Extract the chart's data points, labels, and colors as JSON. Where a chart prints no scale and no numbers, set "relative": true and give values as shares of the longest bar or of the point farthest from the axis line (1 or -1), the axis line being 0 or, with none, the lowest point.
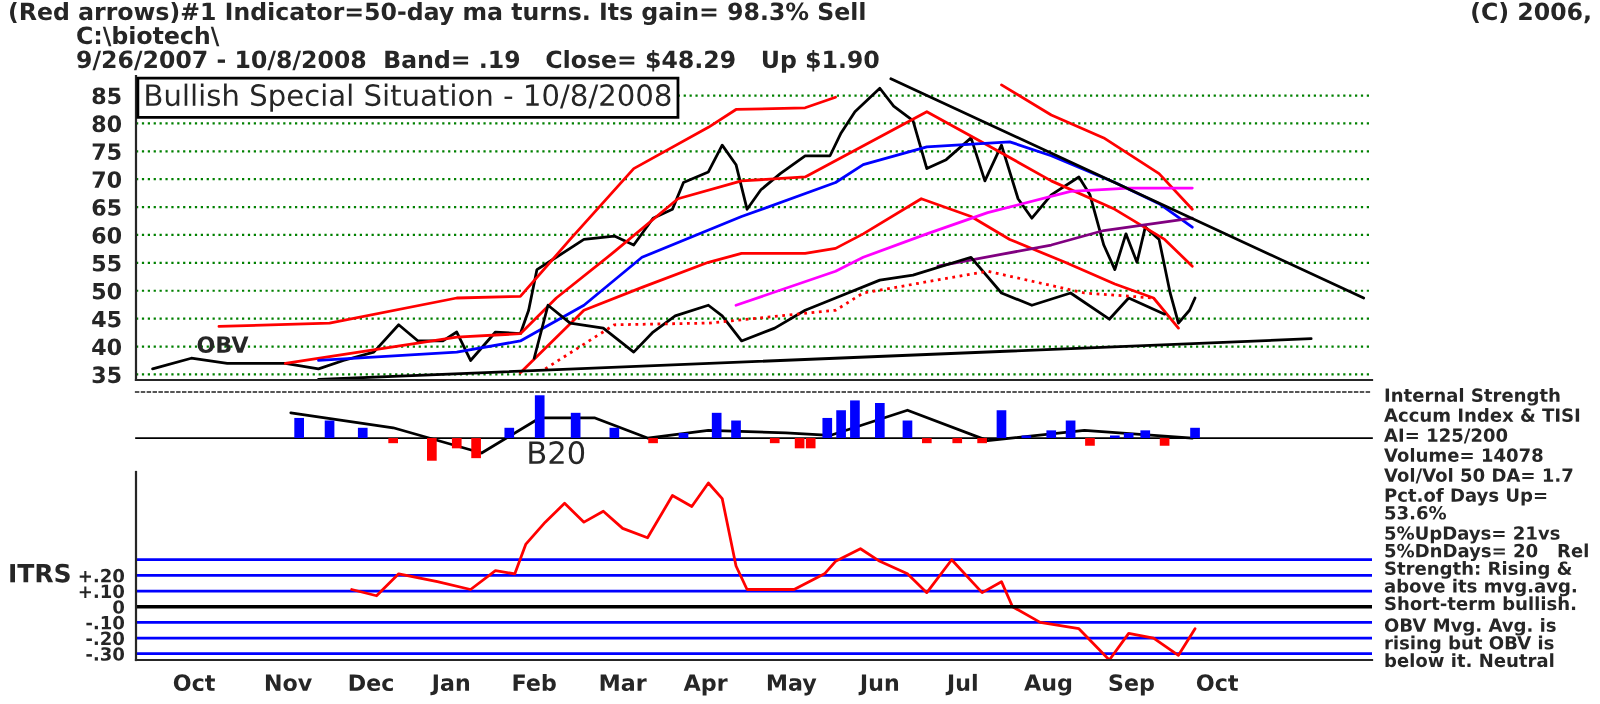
{
  "chart_data": [
    {
      "type": "line",
      "title": "Bullish Special Situation - 10/8/2008",
      "tick_labels": "y",
      "grid": "y",
      "legend": false,
      "xlim": [
        "2007-09-20",
        "2008-12-10"
      ],
      "ylim": [
        34,
        88.5
      ],
      "yticks": [
        35,
        40,
        45,
        50,
        55,
        60,
        65,
        70,
        75,
        80,
        85
      ],
      "xticks": [
        {
          "value": "2007-10-11",
          "label": null
        },
        {
          "value": "2007-11-14",
          "label": null
        },
        {
          "value": "2007-12-14",
          "label": null
        },
        {
          "value": "2008-01-12",
          "label": null
        },
        {
          "value": "2008-02-11",
          "label": null
        },
        {
          "value": "2008-03-14",
          "label": null
        },
        {
          "value": "2008-04-13",
          "label": null
        },
        {
          "value": "2008-05-14",
          "label": null
        },
        {
          "value": "2008-06-15",
          "label": null
        },
        {
          "value": "2008-07-15",
          "label": null
        },
        {
          "value": "2008-08-15",
          "label": null
        },
        {
          "value": "2008-09-14",
          "label": null
        },
        {
          "value": "2008-10-15",
          "label": null
        }
      ],
      "annotations": [
        "(Red arrows)#1 Indicator=50-day ma turns. Its gain= 98.3% Sell",
        "(C) 2006,",
        "C:\\biotech\\",
        "9/26/2007 - 10/8/2008  Band= .19   Close= $48.29   Up $1.90",
        "OBV"
      ],
      "series": [
        {
          "color": "#000000",
          "x": [
            "2007-09-26",
            "2007-10-10",
            "2007-10-23",
            "2007-11-13",
            "2007-11-25",
            "2007-12-04",
            "2007-12-15",
            "2007-12-24",
            "2007-12-31",
            "2008-01-09",
            "2008-01-14",
            "2008-01-19",
            "2008-01-28",
            "2008-02-06",
            "2008-02-09",
            "2008-02-12",
            "2008-02-19",
            "2008-02-29",
            "2008-03-11",
            "2008-03-18",
            "2008-03-25",
            "2008-04-01",
            "2008-04-05",
            "2008-04-14",
            "2008-04-19",
            "2008-04-24",
            "2008-04-28",
            "2008-05-03",
            "2008-05-10",
            "2008-05-19",
            "2008-05-28",
            "2008-06-01",
            "2008-06-06",
            "2008-06-15",
            "2008-06-20",
            "2008-06-27",
            "2008-07-02",
            "2008-07-09",
            "2008-07-18",
            "2008-07-23",
            "2008-07-29",
            "2008-08-04",
            "2008-08-09",
            "2008-08-16",
            "2008-08-26",
            "2008-08-30",
            "2008-09-04",
            "2008-09-08",
            "2008-09-12",
            "2008-09-16",
            "2008-09-19",
            "2008-09-24",
            "2008-09-28",
            "2008-10-01",
            "2008-10-05",
            "2008-10-07"
          ],
          "values": [
            36,
            37.9,
            37,
            37,
            36,
            37.5,
            39,
            43.9,
            41,
            41,
            42.6,
            37.5,
            42.6,
            42.3,
            46.5,
            53.8,
            56,
            59.2,
            59.8,
            58.2,
            63,
            64.6,
            69.4,
            71.3,
            76.1,
            72.6,
            64.6,
            68.1,
            71,
            74.2,
            74.2,
            78.3,
            82.1,
            86.3,
            83.1,
            80.5,
            71.9,
            73.5,
            77.4,
            69.7,
            76.1,
            66.5,
            63,
            67.2,
            70.4,
            67.2,
            58.2,
            53.8,
            60.2,
            55.1,
            61.4,
            59.2,
            49.6,
            44.2,
            46.5,
            48.7
          ]
        },
        {
          "color": "#ff0000",
          "x": [
            "2007-10-20",
            "2007-11-29",
            "2008-01-14",
            "2008-02-06",
            "2008-02-24",
            "2008-03-18",
            "2008-04-14",
            "2008-04-24",
            "2008-05-19",
            "2008-05-30",
            "2008-06-13",
            "2008-07-18",
            "2008-07-29",
            "2008-08-16",
            "2008-09-04",
            "2008-09-24",
            "2008-10-06"
          ],
          "values": [
            43.6,
            44.2,
            48.7,
            49,
            59.2,
            71.9,
            79.3,
            82.5,
            82.8,
            84.7,
            null,
            null,
            86.9,
            81.5,
            77.4,
            71,
            64.6
          ]
        },
        {
          "color": "#ff0000",
          "x": [
            "2007-11-13",
            "2008-01-14",
            "2008-02-06",
            "2008-02-19",
            "2008-03-11",
            "2008-04-03",
            "2008-04-26",
            "2008-05-19",
            "2008-07-02",
            "2008-07-24",
            "2008-08-16",
            "2008-09-08",
            "2008-09-26",
            "2008-10-06"
          ],
          "values": [
            37,
            41.7,
            42.3,
            48.7,
            57,
            66.5,
            69.7,
            70.4,
            82.1,
            76.1,
            69.7,
            64.6,
            59.2,
            54.4
          ]
        },
        {
          "color": "#ff0000",
          "x": [
            "2008-02-06",
            "2008-02-29",
            "2008-03-21",
            "2008-04-14",
            "2008-04-26",
            "2008-05-19",
            "2008-05-30",
            "2008-06-09",
            "2008-06-30",
            "2008-07-18",
            "2008-08-01",
            "2008-08-21",
            "2008-09-08",
            "2008-09-22",
            "2008-10-01"
          ],
          "values": [
            35.3,
            46.5,
            50.6,
            55.1,
            56.7,
            56.7,
            57.6,
            60.2,
            66.5,
            63.3,
            59.2,
            55.1,
            51.2,
            48.7,
            43.3
          ]
        },
        {
          "color": "#0000ff",
          "x": [
            "2007-11-25",
            "2008-01-14",
            "2008-02-06",
            "2008-02-29",
            "2008-03-21",
            "2008-04-26",
            "2008-05-30",
            "2008-06-09",
            "2008-07-02",
            "2008-08-01",
            "2008-08-16",
            "2008-09-08",
            "2008-09-24",
            "2008-10-06"
          ],
          "values": [
            37.5,
            39,
            41,
            47.4,
            56,
            63.3,
            69.4,
            72.6,
            75.8,
            76.7,
            74.2,
            69.4,
            65.6,
            61.4
          ]
        },
        {
          "color": "#ff00ff",
          "x": [
            "2008-04-24",
            "2008-05-30",
            "2008-06-09",
            "2008-07-02",
            "2008-07-24",
            "2008-08-23",
            "2008-09-13",
            "2008-10-06"
          ],
          "values": [
            47.4,
            53.5,
            56,
            60.2,
            64,
            67.8,
            68.4,
            68.4
          ]
        },
        {
          "color": "#800080",
          "x": [
            "2008-07-06",
            "2008-08-16",
            "2008-09-04",
            "2008-10-06"
          ],
          "values": [
            54.4,
            58.2,
            60.8,
            63
          ]
        },
        {
          "color": "#000000",
          "x": [
            "2008-02-11",
            "2008-02-16",
            "2008-02-24",
            "2008-03-07",
            "2008-03-18",
            "2008-03-25",
            "2008-04-02",
            "2008-04-14",
            "2008-04-19",
            "2008-04-26",
            "2008-05-08",
            "2008-05-19",
            "2008-05-30",
            "2008-06-15",
            "2008-06-27",
            "2008-07-18",
            "2008-07-29",
            "2008-08-09",
            "2008-08-23",
            "2008-09-06",
            "2008-09-13",
            "2008-09-26"
          ],
          "values": [
            37.9,
            47.4,
            44.2,
            43.3,
            39,
            42.6,
            45.5,
            47.4,
            45.5,
            41,
            43.3,
            46.5,
            48.7,
            51.9,
            52.8,
            56,
            49.6,
            47.4,
            49.6,
            44.9,
            48.7,
            45.8
          ]
        },
        {
          "color": "#ff0000",
          "line_style": "dotted",
          "x": [
            "2008-02-15",
            "2008-03-11",
            "2008-04-14",
            "2008-05-30",
            "2008-06-09",
            "2008-07-24",
            "2008-08-28",
            "2008-09-22"
          ],
          "values": [
            36,
            43.9,
            44.2,
            46.5,
            49.6,
            53.5,
            49.6,
            48.7
          ]
        },
        {
          "color": "#000000",
          "x": [
            "2008-06-19",
            "2008-12-07"
          ],
          "values": [
            88,
            48.7
          ]
        },
        {
          "color": "#000000",
          "x": [
            "2007-11-25",
            "2008-11-18"
          ],
          "values": [
            34.1,
            41.4
          ]
        }
      ]
    },
    {
      "type": "bar",
      "relative": true,
      "tick_labels": false,
      "xlim": [
        "2007-09-20",
        "2008-12-10"
      ],
      "annotations": [
        "B20",
        "Internal Strength",
        "Accum Index & TISI",
        "AI= 125/200",
        "Volume= 14078",
        "Vol/Vol 50 DA= 1.7",
        "Pct.of Days Up= 53.6%",
        "5%UpDays= 21vs 5%DnDays= 20   Rel Strength: Rising & above its mvg.avg. Short-term bullish.",
        "OBV Mvg. Avg. is rising but OBV is below it. Neutral"
      ],
      "series": [
        {
          "type": "bar",
          "x": [
            "2007-11-18",
            "2007-11-29",
            "2007-12-11",
            "2007-12-22",
            "2008-01-05",
            "2008-01-14",
            "2008-01-21",
            "2008-02-02",
            "2008-02-13",
            "2008-02-26",
            "2008-03-11",
            "2008-03-25",
            "2008-04-05",
            "2008-04-17",
            "2008-04-24",
            "2008-05-08",
            "2008-05-17",
            "2008-05-21",
            "2008-05-27",
            "2008-06-01",
            "2008-06-06",
            "2008-06-15",
            "2008-06-25",
            "2008-07-02",
            "2008-07-13",
            "2008-07-22",
            "2008-07-29",
            "2008-08-07",
            "2008-08-16",
            "2008-08-23",
            "2008-08-30",
            "2008-09-08",
            "2008-09-13",
            "2008-09-19",
            "2008-09-26",
            "2008-10-07"
          ],
          "values": [
            0.47,
            0.41,
            0.24,
            -0.12,
            -0.53,
            -0.24,
            -0.47,
            0.24,
            1,
            0.59,
            0.24,
            -0.12,
            0.12,
            0.59,
            0.41,
            -0.12,
            -0.24,
            -0.24,
            0.47,
            0.65,
            0.88,
            0.82,
            0.41,
            -0.12,
            -0.12,
            -0.12,
            0.65,
            0.06,
            0.18,
            0.41,
            -0.18,
            0.06,
            0.12,
            0.18,
            -0.18,
            0.24
          ],
          "colors": [
            "#0000ff",
            "#0000ff",
            "#0000ff",
            "#ff0000",
            "#ff0000",
            "#ff0000",
            "#ff0000",
            "#0000ff",
            "#0000ff",
            "#0000ff",
            "#0000ff",
            "#ff0000",
            "#0000ff",
            "#0000ff",
            "#0000ff",
            "#ff0000",
            "#ff0000",
            "#ff0000",
            "#0000ff",
            "#0000ff",
            "#0000ff",
            "#0000ff",
            "#0000ff",
            "#ff0000",
            "#ff0000",
            "#ff0000",
            "#0000ff",
            "#0000ff",
            "#0000ff",
            "#0000ff",
            "#ff0000",
            "#0000ff",
            "#0000ff",
            "#0000ff",
            "#ff0000",
            "#0000ff"
          ]
        },
        {
          "type": "line",
          "color": "#000000",
          "x": [
            "2007-11-15",
            "2007-12-22",
            "2008-01-23",
            "2008-02-13",
            "2008-03-04",
            "2008-03-23",
            "2008-04-14",
            "2008-05-12",
            "2008-05-28",
            "2008-06-25",
            "2008-07-24",
            "2008-08-28",
            "2008-10-06"
          ],
          "values": [
            0.59,
            0.24,
            -0.35,
            0.47,
            0.47,
            0,
            0.18,
            0.12,
            0.06,
            0.65,
            -0.06,
            0.18,
            0
          ]
        }
      ]
    },
    {
      "type": "line",
      "ylabel": "ITRS",
      "grid": "y",
      "xlim": [
        "2007-09-20",
        "2008-12-10"
      ],
      "ylim": [
        -0.34,
        0.86
      ],
      "yticks": [
        {
          "value": 0.3,
          "label": null
        },
        {
          "value": 0.2,
          "label": "+.20"
        },
        {
          "value": 0.1,
          "label": "+.10"
        },
        0,
        {
          "value": -0.1,
          "label": "-.10"
        },
        {
          "value": -0.2,
          "label": "-.20"
        },
        {
          "value": -0.3,
          "label": "-.30"
        }
      ],
      "xticks": [
        {
          "value": "2007-10-11",
          "label": "Oct"
        },
        {
          "value": "2007-11-14",
          "label": "Nov"
        },
        {
          "value": "2007-12-14",
          "label": "Dec"
        },
        {
          "value": "2008-01-12",
          "label": "Jan"
        },
        {
          "value": "2008-02-11",
          "label": "Feb"
        },
        {
          "value": "2008-03-14",
          "label": "Mar"
        },
        {
          "value": "2008-04-13",
          "label": "Apr"
        },
        {
          "value": "2008-05-14",
          "label": "May"
        },
        {
          "value": "2008-06-15",
          "label": "Jun"
        },
        {
          "value": "2008-07-15",
          "label": "Jul"
        },
        {
          "value": "2008-08-15",
          "label": "Aug"
        },
        {
          "value": "2008-09-14",
          "label": "Sep"
        },
        {
          "value": "2008-10-15",
          "label": "Oct"
        }
      ],
      "ref_lines": [
        {
          "axis": "y",
          "value": 0,
          "color": "#000000"
        }
      ],
      "series": [
        {
          "color": "#ff0000",
          "x": [
            "2007-12-07",
            "2007-12-16",
            "2007-12-24",
            "2008-01-07",
            "2008-01-19",
            "2008-01-28",
            "2008-02-04",
            "2008-02-08",
            "2008-02-15",
            "2008-02-22",
            "2008-02-29",
            "2008-03-07",
            "2008-03-14",
            "2008-03-23",
            "2008-04-01",
            "2008-04-08",
            "2008-04-14",
            "2008-04-19",
            "2008-04-24",
            "2008-04-28",
            "2008-05-15",
            "2008-05-26",
            "2008-05-30",
            "2008-06-08",
            "2008-06-15",
            "2008-06-25",
            "2008-07-02",
            "2008-07-11",
            "2008-07-22",
            "2008-07-29",
            "2008-08-02",
            "2008-08-12",
            "2008-08-26",
            "2008-09-06",
            "2008-09-13",
            "2008-09-22",
            "2008-10-01",
            "2008-10-07"
          ],
          "values": [
            0.11,
            0.07,
            0.21,
            0.16,
            0.11,
            0.23,
            0.21,
            0.4,
            0.54,
            0.66,
            0.54,
            0.61,
            0.5,
            0.44,
            0.71,
            0.64,
            0.79,
            0.69,
            0.26,
            0.11,
            0.11,
            0.21,
            0.29,
            0.37,
            0.29,
            0.21,
            0.09,
            0.3,
            0.09,
            0.16,
            0,
            -0.1,
            -0.14,
            -0.34,
            -0.17,
            -0.2,
            -0.31,
            -0.14
          ]
        }
      ]
    }
  ]
}
